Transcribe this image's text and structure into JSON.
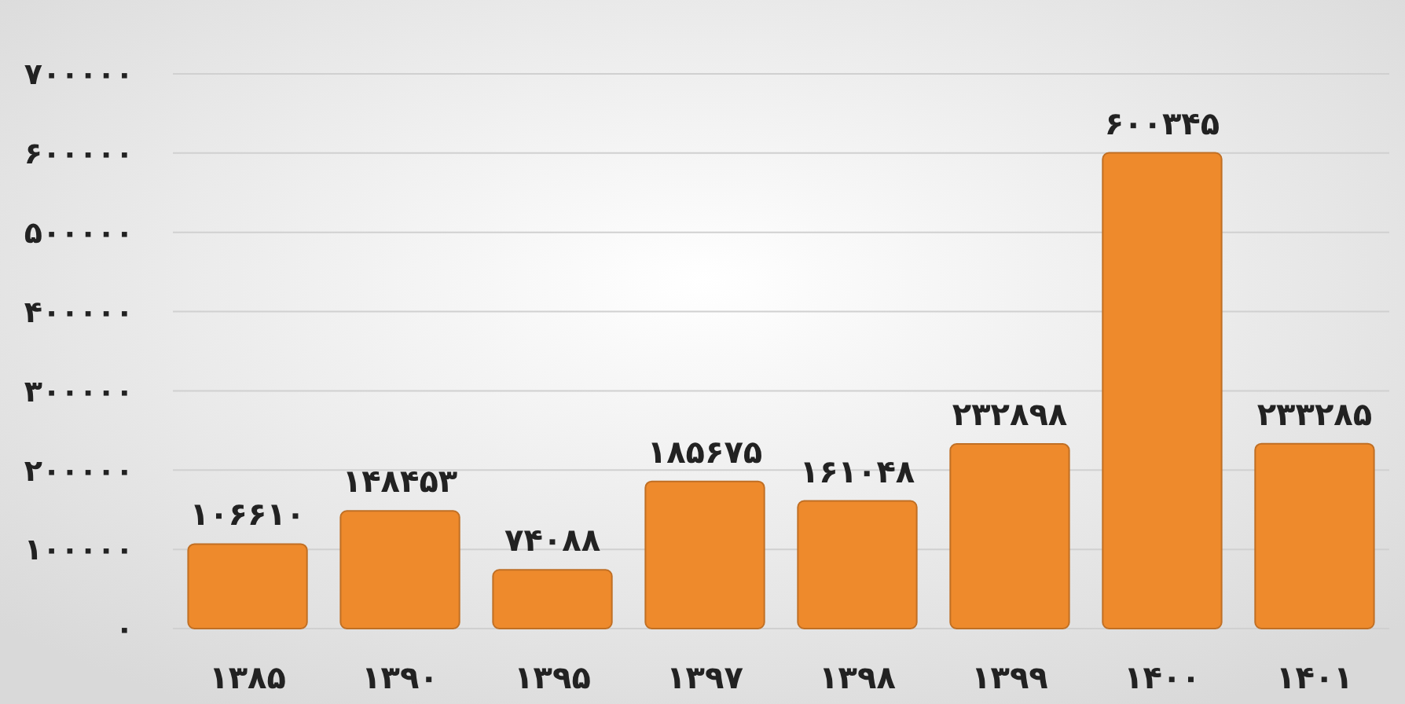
{
  "chart_data": {
    "type": "bar",
    "categories": [
      "۱۳۸۵",
      "۱۳۹۰",
      "۱۳۹۵",
      "۱۳۹۷",
      "۱۳۹۸",
      "۱۳۹۹",
      "۱۴۰۰",
      "۱۴۰۱"
    ],
    "values": [
      106610,
      148453,
      74088,
      185675,
      161048,
      232898,
      600345,
      233285
    ],
    "value_labels": [
      "۱۰۶۶۱۰",
      "۱۴۸۴۵۳",
      "۷۴۰۸۸",
      "۱۸۵۶۷۵",
      "۱۶۱۰۴۸",
      "۲۳۲۸۹۸",
      "۶۰۰۳۴۵",
      "۲۳۳۲۸۵"
    ],
    "color": "#ee8a2c",
    "ylim": [
      0,
      700000
    ],
    "yticks": [
      {
        "value": 0,
        "label": "۰"
      },
      {
        "value": 100000,
        "label": "۱۰۰۰۰۰"
      },
      {
        "value": 200000,
        "label": "۲۰۰۰۰۰"
      },
      {
        "value": 300000,
        "label": "۳۰۰۰۰۰"
      },
      {
        "value": 400000,
        "label": "۴۰۰۰۰۰"
      },
      {
        "value": 500000,
        "label": "۵۰۰۰۰۰"
      },
      {
        "value": 600000,
        "label": "۶۰۰۰۰۰"
      },
      {
        "value": 700000,
        "label": "۷۰۰۰۰۰"
      }
    ],
    "grid": "y"
  }
}
